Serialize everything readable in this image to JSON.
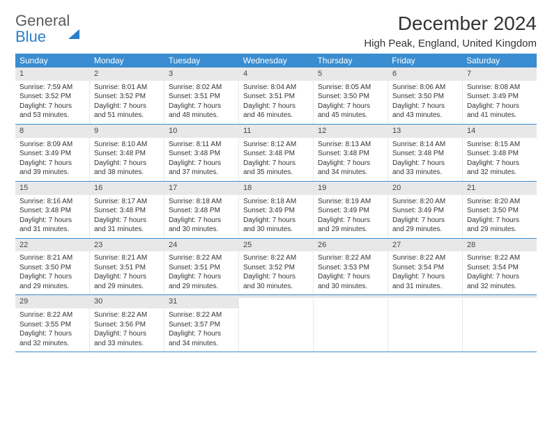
{
  "logo": {
    "line1": "General",
    "line2": "Blue"
  },
  "title": "December 2024",
  "location": "High Peak, England, United Kingdom",
  "day_header_bg": "#3a8dd0",
  "day_num_bg": "#e8e8e8",
  "week_border": "#3a8dd0",
  "weekdays": [
    "Sunday",
    "Monday",
    "Tuesday",
    "Wednesday",
    "Thursday",
    "Friday",
    "Saturday"
  ],
  "weeks": [
    [
      {
        "n": "1",
        "sr": "7:59 AM",
        "ss": "3:52 PM",
        "dlh": "7",
        "dlm": "53"
      },
      {
        "n": "2",
        "sr": "8:01 AM",
        "ss": "3:52 PM",
        "dlh": "7",
        "dlm": "51"
      },
      {
        "n": "3",
        "sr": "8:02 AM",
        "ss": "3:51 PM",
        "dlh": "7",
        "dlm": "48"
      },
      {
        "n": "4",
        "sr": "8:04 AM",
        "ss": "3:51 PM",
        "dlh": "7",
        "dlm": "46"
      },
      {
        "n": "5",
        "sr": "8:05 AM",
        "ss": "3:50 PM",
        "dlh": "7",
        "dlm": "45"
      },
      {
        "n": "6",
        "sr": "8:06 AM",
        "ss": "3:50 PM",
        "dlh": "7",
        "dlm": "43"
      },
      {
        "n": "7",
        "sr": "8:08 AM",
        "ss": "3:49 PM",
        "dlh": "7",
        "dlm": "41"
      }
    ],
    [
      {
        "n": "8",
        "sr": "8:09 AM",
        "ss": "3:49 PM",
        "dlh": "7",
        "dlm": "39"
      },
      {
        "n": "9",
        "sr": "8:10 AM",
        "ss": "3:48 PM",
        "dlh": "7",
        "dlm": "38"
      },
      {
        "n": "10",
        "sr": "8:11 AM",
        "ss": "3:48 PM",
        "dlh": "7",
        "dlm": "37"
      },
      {
        "n": "11",
        "sr": "8:12 AM",
        "ss": "3:48 PM",
        "dlh": "7",
        "dlm": "35"
      },
      {
        "n": "12",
        "sr": "8:13 AM",
        "ss": "3:48 PM",
        "dlh": "7",
        "dlm": "34"
      },
      {
        "n": "13",
        "sr": "8:14 AM",
        "ss": "3:48 PM",
        "dlh": "7",
        "dlm": "33"
      },
      {
        "n": "14",
        "sr": "8:15 AM",
        "ss": "3:48 PM",
        "dlh": "7",
        "dlm": "32"
      }
    ],
    [
      {
        "n": "15",
        "sr": "8:16 AM",
        "ss": "3:48 PM",
        "dlh": "7",
        "dlm": "31"
      },
      {
        "n": "16",
        "sr": "8:17 AM",
        "ss": "3:48 PM",
        "dlh": "7",
        "dlm": "31"
      },
      {
        "n": "17",
        "sr": "8:18 AM",
        "ss": "3:48 PM",
        "dlh": "7",
        "dlm": "30"
      },
      {
        "n": "18",
        "sr": "8:18 AM",
        "ss": "3:49 PM",
        "dlh": "7",
        "dlm": "30"
      },
      {
        "n": "19",
        "sr": "8:19 AM",
        "ss": "3:49 PM",
        "dlh": "7",
        "dlm": "29"
      },
      {
        "n": "20",
        "sr": "8:20 AM",
        "ss": "3:49 PM",
        "dlh": "7",
        "dlm": "29"
      },
      {
        "n": "21",
        "sr": "8:20 AM",
        "ss": "3:50 PM",
        "dlh": "7",
        "dlm": "29"
      }
    ],
    [
      {
        "n": "22",
        "sr": "8:21 AM",
        "ss": "3:50 PM",
        "dlh": "7",
        "dlm": "29"
      },
      {
        "n": "23",
        "sr": "8:21 AM",
        "ss": "3:51 PM",
        "dlh": "7",
        "dlm": "29"
      },
      {
        "n": "24",
        "sr": "8:22 AM",
        "ss": "3:51 PM",
        "dlh": "7",
        "dlm": "29"
      },
      {
        "n": "25",
        "sr": "8:22 AM",
        "ss": "3:52 PM",
        "dlh": "7",
        "dlm": "30"
      },
      {
        "n": "26",
        "sr": "8:22 AM",
        "ss": "3:53 PM",
        "dlh": "7",
        "dlm": "30"
      },
      {
        "n": "27",
        "sr": "8:22 AM",
        "ss": "3:54 PM",
        "dlh": "7",
        "dlm": "31"
      },
      {
        "n": "28",
        "sr": "8:22 AM",
        "ss": "3:54 PM",
        "dlh": "7",
        "dlm": "32"
      }
    ],
    [
      {
        "n": "29",
        "sr": "8:22 AM",
        "ss": "3:55 PM",
        "dlh": "7",
        "dlm": "32"
      },
      {
        "n": "30",
        "sr": "8:22 AM",
        "ss": "3:56 PM",
        "dlh": "7",
        "dlm": "33"
      },
      {
        "n": "31",
        "sr": "8:22 AM",
        "ss": "3:57 PM",
        "dlh": "7",
        "dlm": "34"
      },
      {
        "empty": true
      },
      {
        "empty": true
      },
      {
        "empty": true
      },
      {
        "empty": true
      }
    ]
  ],
  "labels": {
    "sunrise": "Sunrise:",
    "sunset": "Sunset:",
    "daylight_prefix": "Daylight:",
    "hours_word": "hours",
    "and_word": "and",
    "minutes_word": "minutes."
  }
}
